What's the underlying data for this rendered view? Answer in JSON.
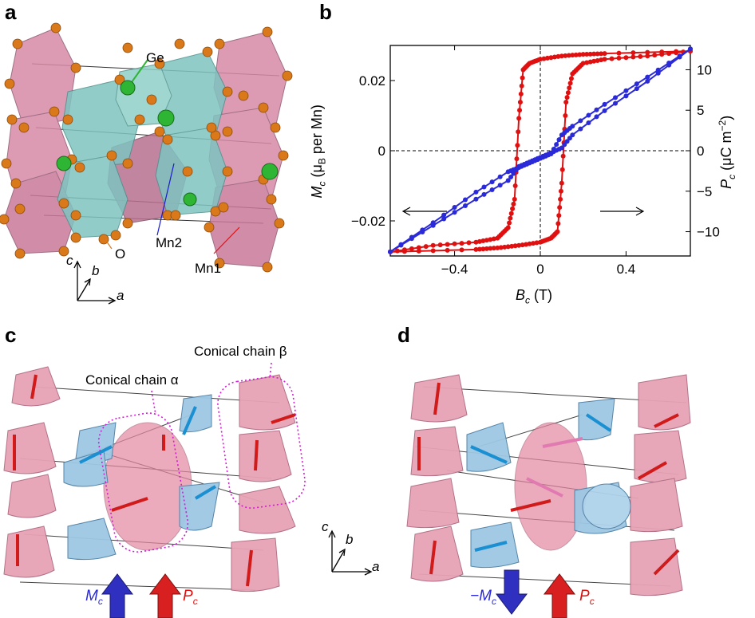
{
  "panels": {
    "a": {
      "label": "a",
      "atoms": {
        "ge": "Ge",
        "o": "O",
        "mn2": "Mn2",
        "mn1": "Mn1"
      },
      "axes": {
        "c": "c",
        "b": "b",
        "a": "a"
      },
      "colors": {
        "mn1_octahedra": "#d88aa6",
        "mn2_polyhedra": "#7fc4c0",
        "ge": "#2fb534",
        "oxygen": "#d9791a"
      }
    },
    "b": {
      "label": "b"
    },
    "c": {
      "label": "c",
      "chain_alpha": "Conical chain α",
      "chain_beta": "Conical chain β",
      "legend_m": "M",
      "legend_m_sub": "c",
      "legend_p": "P",
      "legend_p_sub": "c",
      "axes": {
        "c": "c",
        "b": "b",
        "a": "a"
      }
    },
    "d": {
      "label": "d",
      "legend_m": "−M",
      "legend_m_sub": "c",
      "legend_p": "P",
      "legend_p_sub": "c"
    }
  },
  "chart_data": {
    "type": "line",
    "xlabel": "B",
    "xlabel_sub": "c",
    "xlabel_unit": " (T)",
    "ylabel": "M",
    "ylabel_sub": "c",
    "ylabel_rest": " (μ",
    "ylabel_rest_sub": "B",
    "ylabel_tail": " per Mn)",
    "y2label": "P",
    "y2label_sub": "c",
    "y2label_rest": " (μC m",
    "y2label_sup": "−2",
    "y2label_close": ")",
    "xlim": [
      -0.7,
      0.7
    ],
    "ylim": [
      -0.03,
      0.03
    ],
    "y2lim": [
      -13,
      13
    ],
    "x_ticks": [
      -0.4,
      0,
      0.4
    ],
    "x_tick_labels": [
      "−0.4",
      "0",
      "0.4"
    ],
    "y_ticks": [
      -0.02,
      0,
      0.02
    ],
    "y_tick_labels": [
      "−0.02",
      "0",
      "0.02"
    ],
    "y2_ticks": [
      -10,
      -5,
      0,
      5,
      10
    ],
    "y2_tick_labels": [
      "−10",
      "−5",
      "0",
      "5",
      "10"
    ],
    "series": [
      {
        "axis": "left",
        "color": "#2a2ad8",
        "x": [
          -0.7,
          -0.5,
          -0.3,
          -0.15,
          -0.1,
          -0.05,
          0,
          0.05,
          0.1,
          0.15,
          0.3,
          0.5,
          0.7
        ],
        "y": [
          -0.0288,
          -0.0213,
          -0.0138,
          -0.0085,
          -0.0045,
          -0.0032,
          -0.0019,
          -0.0006,
          0.0008,
          0.0045,
          0.0114,
          0.0198,
          0.029
        ],
        "y_return": [
          -0.0288,
          -0.0205,
          -0.0118,
          -0.006,
          -0.0048,
          -0.0035,
          -0.0022,
          -0.0009,
          0.0045,
          0.007,
          0.0132,
          0.021,
          0.029
        ]
      },
      {
        "axis": "right",
        "color": "#e01010",
        "x_up": [
          -0.7,
          -0.3,
          -0.2,
          -0.1,
          0.0,
          0.05,
          0.08,
          0.1,
          0.12,
          0.15,
          0.2,
          0.3,
          0.5,
          0.7
        ],
        "y_up": [
          -12.5,
          -12.2,
          -12.0,
          -11.7,
          -11.3,
          -10.8,
          -10.0,
          -4.0,
          6.0,
          9.5,
          10.8,
          11.3,
          11.7,
          12.3
        ],
        "x_down": [
          0.7,
          0.3,
          0.2,
          0.1,
          0.0,
          -0.05,
          -0.08,
          -0.1,
          -0.12,
          -0.15,
          -0.2,
          -0.3,
          -0.5,
          -0.7
        ],
        "y_down": [
          12.3,
          12.0,
          11.9,
          11.7,
          11.3,
          10.8,
          10.0,
          4.0,
          -6.0,
          -9.5,
          -10.8,
          -11.3,
          -11.7,
          -12.5
        ]
      }
    ],
    "arrows": [
      "left",
      "right"
    ]
  }
}
